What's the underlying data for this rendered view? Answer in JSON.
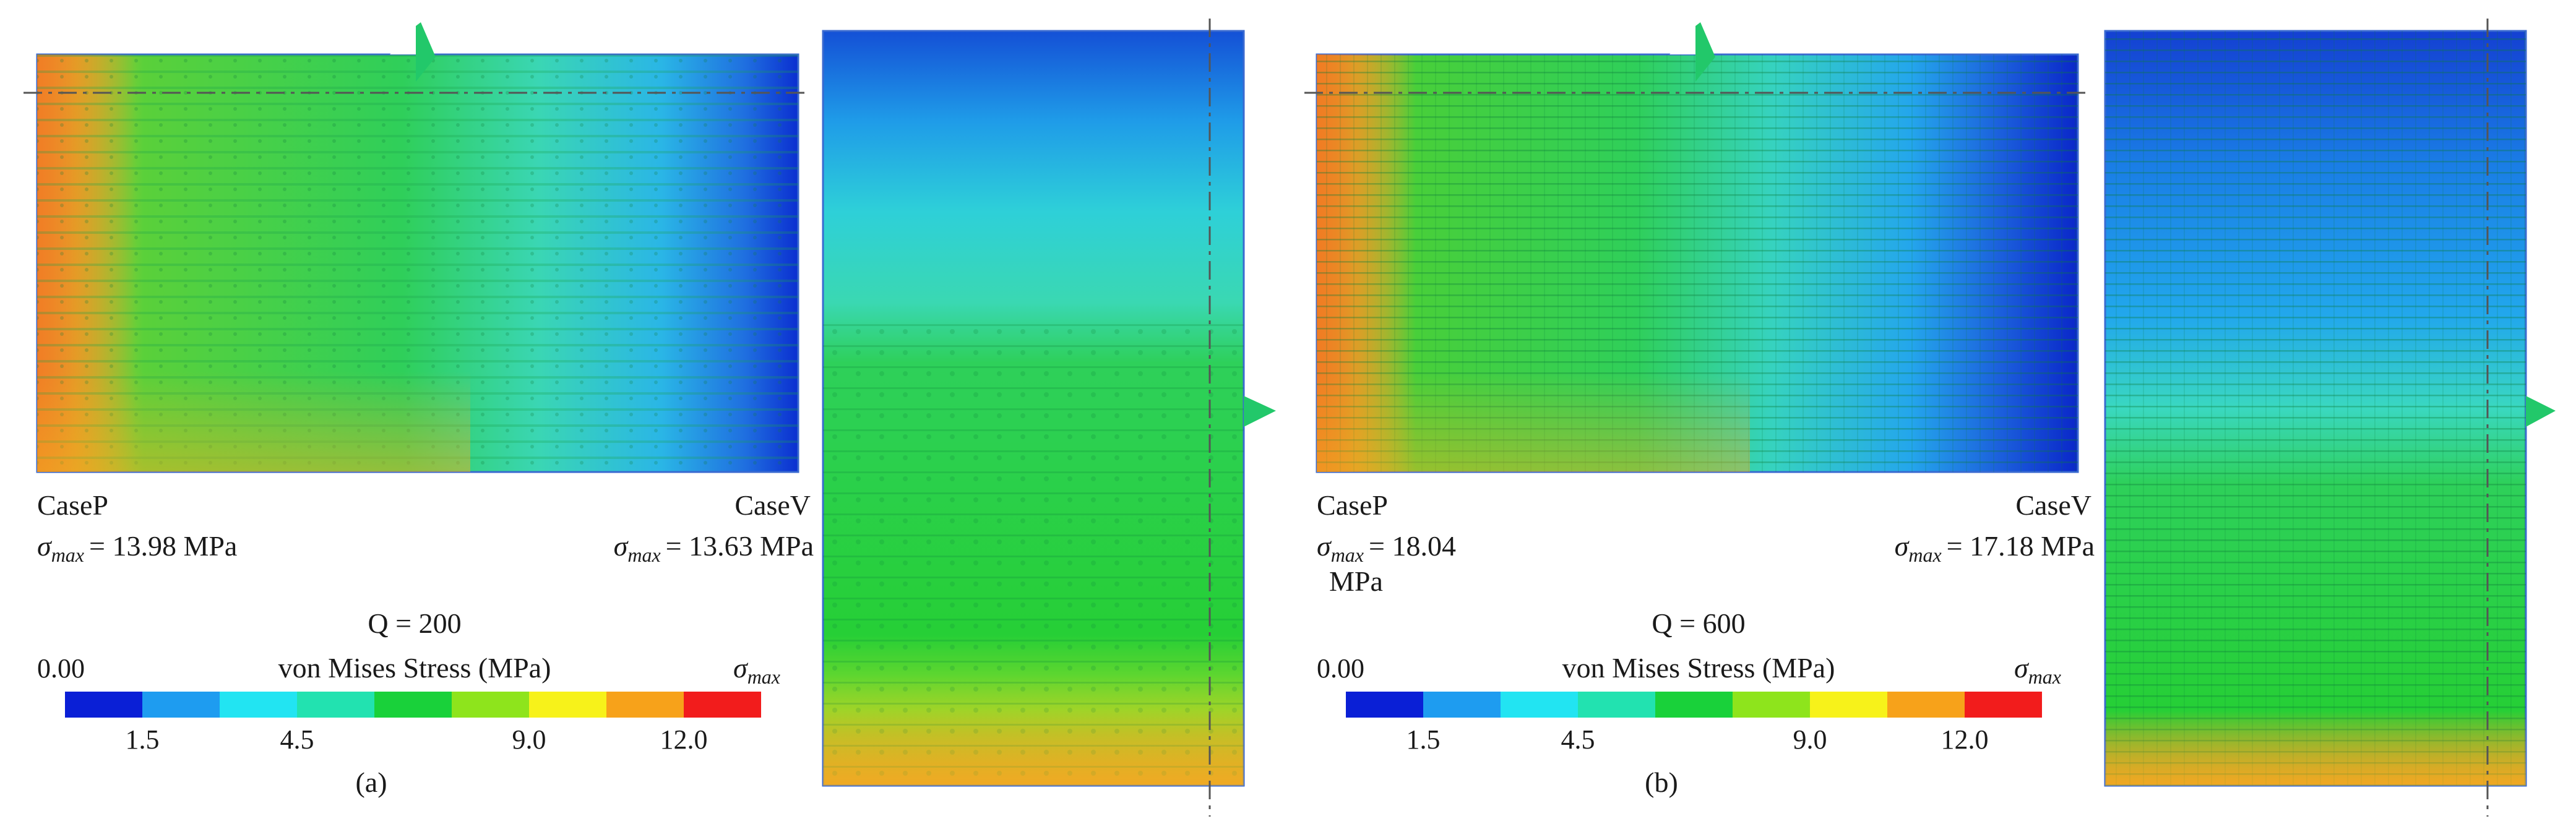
{
  "panels": [
    {
      "id": "a",
      "left_case": "CaseP",
      "right_case": "CaseV",
      "left_sigma_value": "= 13.98 MPa",
      "right_sigma_value": "= 13.63 MPa",
      "q_label": "Q = 200",
      "panel_label": "(a)"
    },
    {
      "id": "b",
      "left_case": "CaseP",
      "right_case": "CaseV",
      "left_sigma_value": "= 18.04",
      "left_sigma_unit_wrap": "MPa",
      "right_sigma_value": "= 17.18 MPa",
      "q_label": "Q = 600",
      "panel_label": "(b)"
    }
  ],
  "sigma_symbol": "σ",
  "sigma_subscript": "max",
  "colorbar": {
    "title": "von Mises Stress (MPa)",
    "min_label": "0.00",
    "max_label_symbol": "σ",
    "max_label_sub": "max",
    "ticks": [
      "1.5",
      "4.5",
      "9.0",
      "12.0"
    ],
    "colors": [
      "#0a1fd6",
      "#1e9cf0",
      "#22e4f2",
      "#22e2b0",
      "#19d13a",
      "#8ee41c",
      "#f7f21a",
      "#f7a21a",
      "#f21c1c"
    ]
  }
}
